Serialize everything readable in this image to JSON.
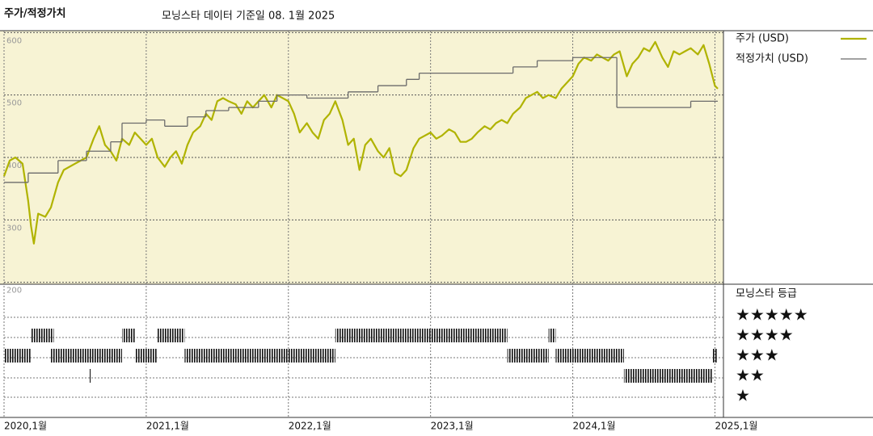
{
  "chart_data": {
    "type": "line",
    "title": "주가/적정가치",
    "subtitle": "모닝스타 데이터 기준일 08. 1월 2025",
    "xlim": [
      2020,
      2025.06
    ],
    "xticks": [
      {
        "value": 2020,
        "label": "2020,1월"
      },
      {
        "value": 2021,
        "label": "2021,1월"
      },
      {
        "value": 2022,
        "label": "2022,1월"
      },
      {
        "value": 2023,
        "label": "2023,1월"
      },
      {
        "value": 2024,
        "label": "2024,1월"
      },
      {
        "value": 2025,
        "label": "2025,1월"
      }
    ],
    "ylim": [
      197,
      603
    ],
    "yticks": [
      200,
      300,
      400,
      500,
      600
    ],
    "grid": true,
    "series": [
      {
        "name": "주가 (USD)",
        "color": "#b0b300",
        "step": false,
        "x": [
          2020.0,
          2020.04,
          2020.08,
          2020.13,
          2020.17,
          2020.19,
          2020.21,
          2020.24,
          2020.29,
          2020.33,
          2020.38,
          2020.42,
          2020.5,
          2020.58,
          2020.63,
          2020.67,
          2020.71,
          2020.75,
          2020.79,
          2020.83,
          2020.88,
          2020.92,
          2021.0,
          2021.04,
          2021.08,
          2021.13,
          2021.17,
          2021.21,
          2021.25,
          2021.29,
          2021.33,
          2021.38,
          2021.42,
          2021.46,
          2021.5,
          2021.54,
          2021.58,
          2021.63,
          2021.67,
          2021.71,
          2021.75,
          2021.79,
          2021.83,
          2021.88,
          2021.92,
          2022.0,
          2022.04,
          2022.08,
          2022.13,
          2022.17,
          2022.21,
          2022.25,
          2022.29,
          2022.33,
          2022.38,
          2022.42,
          2022.46,
          2022.5,
          2022.54,
          2022.58,
          2022.63,
          2022.67,
          2022.71,
          2022.75,
          2022.79,
          2022.83,
          2022.88,
          2022.92,
          2023.0,
          2023.04,
          2023.08,
          2023.13,
          2023.17,
          2023.21,
          2023.25,
          2023.29,
          2023.33,
          2023.38,
          2023.42,
          2023.46,
          2023.5,
          2023.54,
          2023.58,
          2023.63,
          2023.67,
          2023.71,
          2023.75,
          2023.79,
          2023.83,
          2023.88,
          2023.92,
          2024.0,
          2024.04,
          2024.08,
          2024.13,
          2024.17,
          2024.21,
          2024.25,
          2024.29,
          2024.33,
          2024.38,
          2024.42,
          2024.46,
          2024.5,
          2024.54,
          2024.58,
          2024.63,
          2024.67,
          2024.71,
          2024.75,
          2024.79,
          2024.83,
          2024.88,
          2024.92,
          2024.96,
          2025.0,
          2025.02
        ],
        "values": [
          370,
          395,
          400,
          390,
          330,
          290,
          262,
          310,
          305,
          320,
          360,
          380,
          390,
          400,
          430,
          450,
          420,
          410,
          395,
          430,
          420,
          440,
          420,
          430,
          400,
          385,
          400,
          410,
          390,
          420,
          440,
          450,
          470,
          460,
          490,
          495,
          490,
          485,
          470,
          490,
          480,
          490,
          500,
          480,
          500,
          490,
          470,
          440,
          455,
          440,
          430,
          460,
          470,
          490,
          460,
          420,
          430,
          380,
          420,
          430,
          410,
          400,
          415,
          375,
          370,
          380,
          415,
          430,
          440,
          430,
          435,
          445,
          440,
          425,
          425,
          430,
          440,
          450,
          445,
          455,
          460,
          455,
          470,
          480,
          495,
          500,
          505,
          495,
          500,
          495,
          510,
          530,
          550,
          560,
          555,
          565,
          560,
          555,
          565,
          570,
          530,
          550,
          560,
          575,
          570,
          585,
          560,
          545,
          570,
          565,
          570,
          575,
          565,
          580,
          550,
          515,
          510
        ]
      },
      {
        "name": "적정가치 (USD)",
        "color": "#6b6b6b",
        "step": true,
        "x": [
          2020.0,
          2020.17,
          2020.38,
          2020.58,
          2020.75,
          2020.83,
          2021.0,
          2021.13,
          2021.29,
          2021.42,
          2021.58,
          2021.79,
          2021.92,
          2022.13,
          2022.42,
          2022.63,
          2022.83,
          2022.92,
          2023.58,
          2023.75,
          2024.0,
          2024.31,
          2024.83,
          2025.02
        ],
        "values": [
          360,
          375,
          395,
          410,
          425,
          455,
          460,
          450,
          465,
          475,
          480,
          490,
          500,
          495,
          505,
          515,
          525,
          535,
          545,
          555,
          560,
          480,
          490,
          490
        ]
      }
    ],
    "rating_title": "모닝스타 등급",
    "rating_labels": [
      "★★★★★",
      "★★★★",
      "★★★",
      "★★",
      "★"
    ],
    "ratings": [
      {
        "start": 2020.0,
        "end": 2020.19,
        "stars": 3
      },
      {
        "start": 2020.19,
        "end": 2020.35,
        "stars": 4
      },
      {
        "start": 2020.33,
        "end": 2020.83,
        "stars": 3
      },
      {
        "start": 2020.83,
        "end": 2020.92,
        "stars": 4
      },
      {
        "start": 2020.92,
        "end": 2021.08,
        "stars": 3
      },
      {
        "start": 2021.08,
        "end": 2021.27,
        "stars": 4
      },
      {
        "start": 2021.27,
        "end": 2022.33,
        "stars": 3
      },
      {
        "start": 2022.33,
        "end": 2023.54,
        "stars": 4
      },
      {
        "start": 2023.54,
        "end": 2023.83,
        "stars": 3
      },
      {
        "start": 2023.83,
        "end": 2023.88,
        "stars": 4
      },
      {
        "start": 2023.88,
        "end": 2024.36,
        "stars": 3
      },
      {
        "start": 2024.36,
        "end": 2024.98,
        "stars": 2
      },
      {
        "start": 2024.98,
        "end": 2025.02,
        "stars": 3
      },
      {
        "start": 2020.6,
        "end": 2020.606,
        "stars": 2
      }
    ]
  }
}
